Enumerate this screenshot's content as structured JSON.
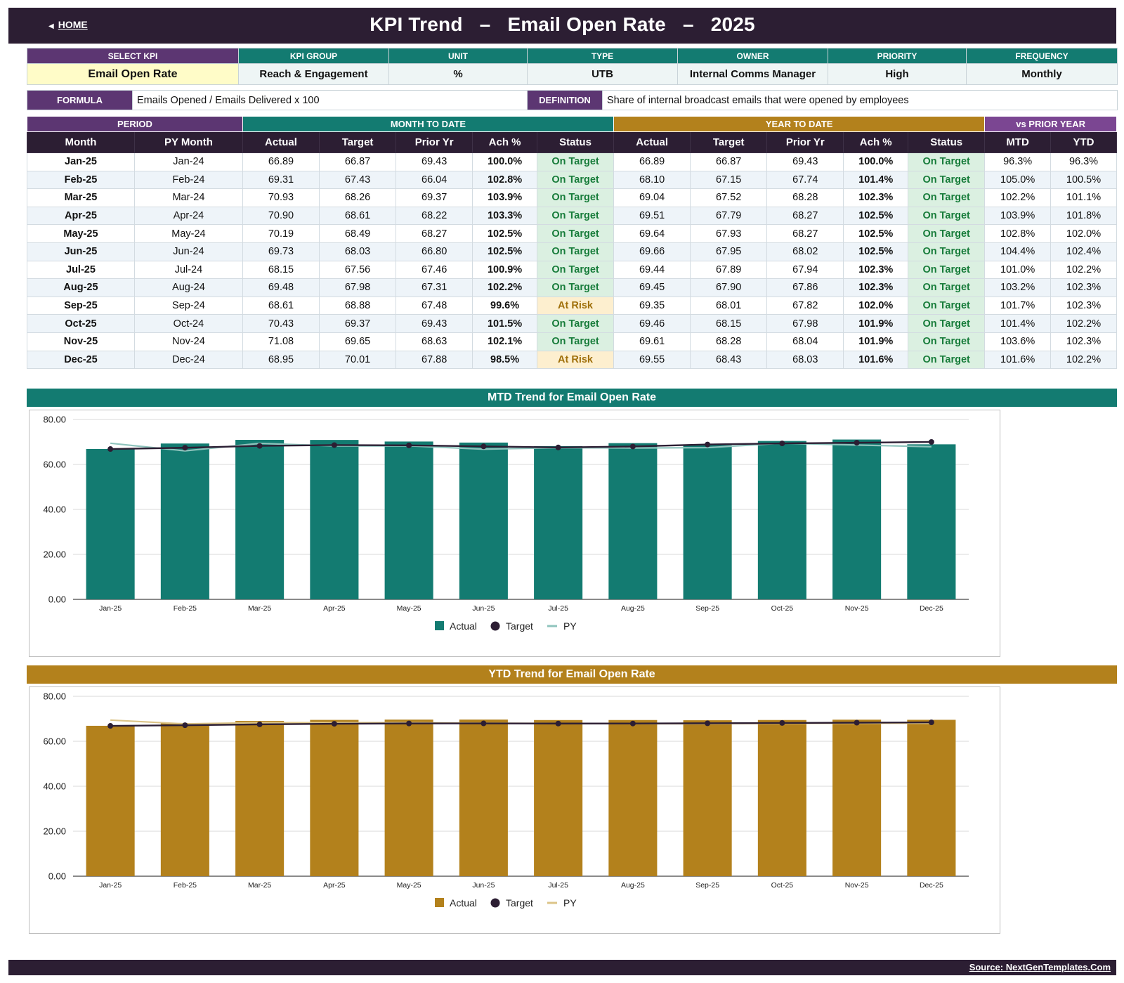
{
  "header": {
    "home_label": "HOME",
    "title_a": "KPI Trend",
    "title_sep": "–",
    "title_b": "Email Open Rate",
    "title_c": "2025"
  },
  "colors": {
    "dark": "#2c1e33",
    "purple": "#5c3672",
    "purple_light": "#7b4692",
    "teal": "#137b71",
    "gold": "#b3811c",
    "teal_py": "#8fc4bd",
    "gold_py": "#dcc488"
  },
  "meta": {
    "headers": [
      "SELECT KPI",
      "KPI GROUP",
      "UNIT",
      "TYPE",
      "OWNER",
      "PRIORITY",
      "FREQUENCY"
    ],
    "values": [
      "Email Open Rate",
      "Reach & Engagement",
      "%",
      "UTB",
      "Internal Comms Manager",
      "High",
      "Monthly"
    ]
  },
  "formula": {
    "label": "FORMULA",
    "value": "Emails Opened / Emails Delivered x 100"
  },
  "definition": {
    "label": "DEFINITION",
    "value": "Share of internal broadcast emails that were opened by employees"
  },
  "table": {
    "groups": {
      "period": "PERIOD",
      "mtd": "MONTH TO DATE",
      "ytd": "YEAR TO DATE",
      "py": "vs PRIOR YEAR"
    },
    "columns": [
      "Month",
      "PY Month",
      "Actual",
      "Target",
      "Prior Yr",
      "Ach %",
      "Status",
      "Actual",
      "Target",
      "Prior Yr",
      "Ach %",
      "Status",
      "MTD",
      "YTD"
    ],
    "rows": [
      [
        "Jan-25",
        "Jan-24",
        "66.89",
        "66.87",
        "69.43",
        "100.0%",
        "On Target",
        "66.89",
        "66.87",
        "69.43",
        "100.0%",
        "On Target",
        "96.3%",
        "96.3%"
      ],
      [
        "Feb-25",
        "Feb-24",
        "69.31",
        "67.43",
        "66.04",
        "102.8%",
        "On Target",
        "68.10",
        "67.15",
        "67.74",
        "101.4%",
        "On Target",
        "105.0%",
        "100.5%"
      ],
      [
        "Mar-25",
        "Mar-24",
        "70.93",
        "68.26",
        "69.37",
        "103.9%",
        "On Target",
        "69.04",
        "67.52",
        "68.28",
        "102.3%",
        "On Target",
        "102.2%",
        "101.1%"
      ],
      [
        "Apr-25",
        "Apr-24",
        "70.90",
        "68.61",
        "68.22",
        "103.3%",
        "On Target",
        "69.51",
        "67.79",
        "68.27",
        "102.5%",
        "On Target",
        "103.9%",
        "101.8%"
      ],
      [
        "May-25",
        "May-24",
        "70.19",
        "68.49",
        "68.27",
        "102.5%",
        "On Target",
        "69.64",
        "67.93",
        "68.27",
        "102.5%",
        "On Target",
        "102.8%",
        "102.0%"
      ],
      [
        "Jun-25",
        "Jun-24",
        "69.73",
        "68.03",
        "66.80",
        "102.5%",
        "On Target",
        "69.66",
        "67.95",
        "68.02",
        "102.5%",
        "On Target",
        "104.4%",
        "102.4%"
      ],
      [
        "Jul-25",
        "Jul-24",
        "68.15",
        "67.56",
        "67.46",
        "100.9%",
        "On Target",
        "69.44",
        "67.89",
        "67.94",
        "102.3%",
        "On Target",
        "101.0%",
        "102.2%"
      ],
      [
        "Aug-25",
        "Aug-24",
        "69.48",
        "67.98",
        "67.31",
        "102.2%",
        "On Target",
        "69.45",
        "67.90",
        "67.86",
        "102.3%",
        "On Target",
        "103.2%",
        "102.3%"
      ],
      [
        "Sep-25",
        "Sep-24",
        "68.61",
        "68.88",
        "67.48",
        "99.6%",
        "At Risk",
        "69.35",
        "68.01",
        "67.82",
        "102.0%",
        "On Target",
        "101.7%",
        "102.3%"
      ],
      [
        "Oct-25",
        "Oct-24",
        "70.43",
        "69.37",
        "69.43",
        "101.5%",
        "On Target",
        "69.46",
        "68.15",
        "67.98",
        "101.9%",
        "On Target",
        "101.4%",
        "102.2%"
      ],
      [
        "Nov-25",
        "Nov-24",
        "71.08",
        "69.65",
        "68.63",
        "102.1%",
        "On Target",
        "69.61",
        "68.28",
        "68.04",
        "101.9%",
        "On Target",
        "103.6%",
        "102.3%"
      ],
      [
        "Dec-25",
        "Dec-24",
        "68.95",
        "70.01",
        "67.88",
        "98.5%",
        "At Risk",
        "69.55",
        "68.43",
        "68.03",
        "101.6%",
        "On Target",
        "101.6%",
        "102.2%"
      ]
    ]
  },
  "chart_data": [
    {
      "type": "bar",
      "title": "MTD Trend for Email Open Rate",
      "categories": [
        "Jan-25",
        "Feb-25",
        "Mar-25",
        "Apr-25",
        "May-25",
        "Jun-25",
        "Jul-25",
        "Aug-25",
        "Sep-25",
        "Oct-25",
        "Nov-25",
        "Dec-25"
      ],
      "ylim": [
        0,
        80
      ],
      "yticks": [
        "0.00",
        "20.00",
        "40.00",
        "60.00",
        "80.00"
      ],
      "grid": true,
      "legend_position": "bottom",
      "series": [
        {
          "name": "Actual",
          "kind": "bar",
          "color": "#137b71",
          "values": [
            66.89,
            69.31,
            70.93,
            70.9,
            70.19,
            69.73,
            68.15,
            69.48,
            68.61,
            70.43,
            71.08,
            68.95
          ]
        },
        {
          "name": "Target",
          "kind": "line-markers",
          "color": "#2c1e33",
          "values": [
            66.87,
            67.43,
            68.26,
            68.61,
            68.49,
            68.03,
            67.56,
            67.98,
            68.88,
            69.37,
            69.65,
            70.01
          ]
        },
        {
          "name": "PY",
          "kind": "line",
          "color": "#8fc4bd",
          "values": [
            69.43,
            66.04,
            69.37,
            68.22,
            68.27,
            66.8,
            67.46,
            67.31,
            67.48,
            69.43,
            68.63,
            67.88
          ]
        }
      ]
    },
    {
      "type": "bar",
      "title": "YTD Trend for Email Open Rate",
      "categories": [
        "Jan-25",
        "Feb-25",
        "Mar-25",
        "Apr-25",
        "May-25",
        "Jun-25",
        "Jul-25",
        "Aug-25",
        "Sep-25",
        "Oct-25",
        "Nov-25",
        "Dec-25"
      ],
      "ylim": [
        0,
        80
      ],
      "yticks": [
        "0.00",
        "20.00",
        "40.00",
        "60.00",
        "80.00"
      ],
      "grid": true,
      "legend_position": "bottom",
      "series": [
        {
          "name": "Actual",
          "kind": "bar",
          "color": "#b3811c",
          "values": [
            66.89,
            68.1,
            69.04,
            69.51,
            69.64,
            69.66,
            69.44,
            69.45,
            69.35,
            69.46,
            69.61,
            69.55
          ]
        },
        {
          "name": "Target",
          "kind": "line-markers",
          "color": "#2c1e33",
          "values": [
            66.87,
            67.15,
            67.52,
            67.79,
            67.93,
            67.95,
            67.89,
            67.9,
            68.01,
            68.15,
            68.28,
            68.43
          ]
        },
        {
          "name": "PY",
          "kind": "line",
          "color": "#dcc488",
          "values": [
            69.43,
            67.74,
            68.28,
            68.27,
            68.27,
            68.02,
            67.94,
            67.86,
            67.82,
            67.98,
            68.04,
            68.03
          ]
        }
      ]
    }
  ],
  "footer": {
    "source": "Source: NextGenTemplates.Com"
  }
}
